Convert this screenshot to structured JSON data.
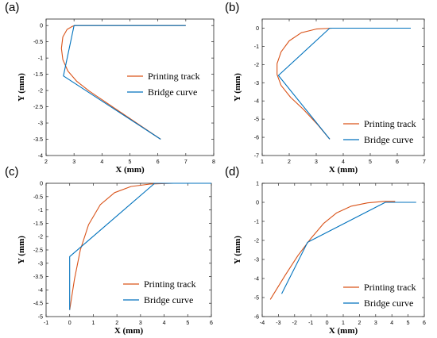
{
  "colors": {
    "printing": "#D95319",
    "bridge": "#0072BD",
    "axis": "#262626",
    "text": "#000000"
  },
  "chart_data": [
    {
      "type": "line",
      "panel_label": "(a)",
      "xlabel": "X (mm)",
      "ylabel": "Y (mm)",
      "xlim": [
        2,
        8
      ],
      "ylim": [
        -4,
        0.2
      ],
      "xticks": [
        "2",
        "3",
        "4",
        "5",
        "6",
        "7",
        "8"
      ],
      "xtick_values": [
        2,
        3,
        4,
        5,
        6,
        7,
        8
      ],
      "yticks": [
        "0",
        "-0.5",
        "-1",
        "-1.5",
        "-2",
        "-2.5",
        "-3",
        "-3.5",
        "-4"
      ],
      "ytick_values": [
        0,
        -0.5,
        -1,
        -1.5,
        -2,
        -2.5,
        -3,
        -3.5,
        -4
      ],
      "legend": [
        "Printing track",
        "Bridge curve"
      ],
      "legend_position": "center-right",
      "series": [
        {
          "name": "Printing track",
          "x": [
            7.0,
            3.05,
            2.95,
            2.75,
            2.6,
            2.55,
            2.6,
            2.78,
            3.1,
            3.55,
            4.0,
            6.1
          ],
          "y": [
            0.0,
            0.0,
            -0.02,
            -0.12,
            -0.35,
            -0.7,
            -1.05,
            -1.4,
            -1.72,
            -2.02,
            -2.28,
            -3.5
          ]
        },
        {
          "name": "Bridge curve",
          "x": [
            7.0,
            3.0,
            2.62,
            6.1
          ],
          "y": [
            0.0,
            0.0,
            -1.55,
            -3.5
          ]
        }
      ]
    },
    {
      "type": "line",
      "panel_label": "(b)",
      "xlabel": "X (mm)",
      "ylabel": "Y (mm)",
      "xlim": [
        1,
        7
      ],
      "ylim": [
        -7,
        0.5
      ],
      "xticks": [
        "1",
        "2",
        "3",
        "4",
        "5",
        "6",
        "7"
      ],
      "xtick_values": [
        1,
        2,
        3,
        4,
        5,
        6,
        7
      ],
      "yticks": [
        "0",
        "-1",
        "-2",
        "-3",
        "-4",
        "-5",
        "-6",
        "-7"
      ],
      "ytick_values": [
        0,
        -1,
        -2,
        -3,
        -4,
        -5,
        -6,
        -7
      ],
      "legend": [
        "Printing track",
        "Bridge curve"
      ],
      "legend_position": "lower-right",
      "series": [
        {
          "name": "Printing track",
          "x": [
            6.5,
            3.6,
            3.0,
            2.45,
            2.0,
            1.7,
            1.55,
            1.55,
            1.7,
            2.05,
            2.55,
            3.05,
            3.5
          ],
          "y": [
            0.0,
            0.0,
            -0.05,
            -0.25,
            -0.7,
            -1.3,
            -1.95,
            -2.55,
            -3.15,
            -3.8,
            -4.5,
            -5.3,
            -6.1
          ]
        },
        {
          "name": "Bridge curve",
          "x": [
            6.5,
            3.5,
            1.6,
            3.5
          ],
          "y": [
            0.0,
            0.0,
            -2.6,
            -6.1
          ]
        }
      ]
    },
    {
      "type": "line",
      "panel_label": "(c)",
      "xlabel": "X (mm)",
      "ylabel": "Y (mm)",
      "xlim": [
        -1,
        6
      ],
      "ylim": [
        -5,
        0
      ],
      "xticks": [
        "-1",
        "0",
        "1",
        "2",
        "3",
        "4",
        "5",
        "6"
      ],
      "xtick_values": [
        -1,
        0,
        1,
        2,
        3,
        4,
        5,
        6
      ],
      "yticks": [
        "0",
        "-0.5",
        "-1",
        "-1.5",
        "-2",
        "-2.5",
        "-3",
        "-3.5",
        "-4",
        "-4.5",
        "-5"
      ],
      "ytick_values": [
        0,
        -0.5,
        -1,
        -1.5,
        -2,
        -2.5,
        -3,
        -3.5,
        -4,
        -4.5,
        -5
      ],
      "legend": [
        "Printing track",
        "Bridge curve"
      ],
      "legend_position": "lower-right",
      "series": [
        {
          "name": "Printing track",
          "x": [
            0.0,
            0.2,
            0.45,
            0.8,
            1.3,
            1.9,
            2.6,
            3.4,
            4.4,
            5.5
          ],
          "y": [
            -4.75,
            -3.6,
            -2.5,
            -1.55,
            -0.8,
            -0.35,
            -0.12,
            -0.03,
            0.0,
            0.0
          ]
        },
        {
          "name": "Bridge curve",
          "x": [
            0.0,
            0.0,
            3.6,
            6.0
          ],
          "y": [
            -4.75,
            -2.75,
            0.0,
            0.0
          ]
        }
      ]
    },
    {
      "type": "line",
      "panel_label": "(d)",
      "xlabel": "X (mm)",
      "ylabel": "Y (mm)",
      "xlim": [
        -4,
        6
      ],
      "ylim": [
        -6,
        1
      ],
      "xticks": [
        "-4",
        "-3",
        "-2",
        "-1",
        "0",
        "1",
        "2",
        "3",
        "4",
        "5",
        "6"
      ],
      "xtick_values": [
        -4,
        -3,
        -2,
        -1,
        0,
        1,
        2,
        3,
        4,
        5,
        6
      ],
      "yticks": [
        "1",
        "0",
        "-1",
        "-2",
        "-3",
        "-4",
        "-5",
        "-6"
      ],
      "ytick_values": [
        1,
        0,
        -1,
        -2,
        -3,
        -4,
        -5,
        -6
      ],
      "legend": [
        "Printing track",
        "Bridge curve"
      ],
      "legend_position": "lower-right",
      "series": [
        {
          "name": "Printing track",
          "x": [
            -3.5,
            -2.6,
            -1.8,
            -1.0,
            -0.2,
            0.6,
            1.5,
            2.5,
            3.5,
            4.2
          ],
          "y": [
            -5.1,
            -3.85,
            -2.8,
            -1.9,
            -1.1,
            -0.55,
            -0.2,
            -0.03,
            0.05,
            0.05
          ]
        },
        {
          "name": "Bridge curve",
          "x": [
            -2.8,
            -1.2,
            3.6,
            5.5
          ],
          "y": [
            -4.8,
            -2.1,
            0.0,
            0.0
          ]
        }
      ]
    }
  ]
}
